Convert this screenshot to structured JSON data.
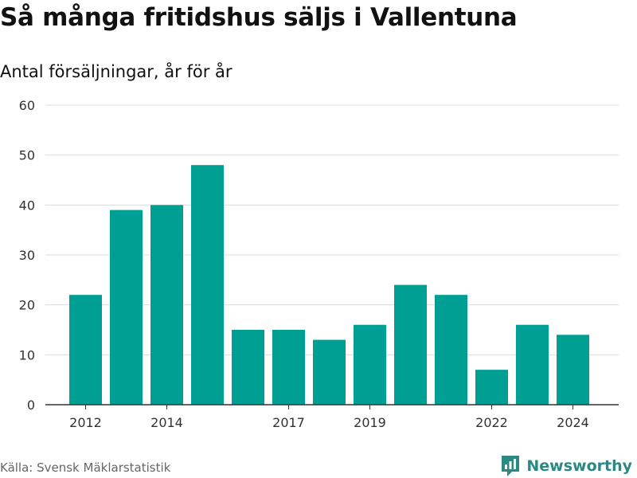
{
  "title": "Så många fritidshus säljs i Vallentuna",
  "subtitle": "Antal försäljningar, år för år",
  "source": "Källa: Svensk Mäklarstatistik",
  "brand": {
    "name": "Newsworthy",
    "icon": "newsworthy-logo-icon",
    "color": "#2a8a83"
  },
  "colors": {
    "bar": "#009f94",
    "grid": "#dddddd",
    "axis": "#333333"
  },
  "chart_data": {
    "type": "bar",
    "x": [
      2012,
      2013,
      2014,
      2015,
      2016,
      2017,
      2018,
      2019,
      2020,
      2021,
      2022,
      2023,
      2024
    ],
    "values": [
      22,
      39,
      40,
      48,
      15,
      15,
      13,
      16,
      24,
      22,
      7,
      16,
      14
    ],
    "xticks": [
      "2012",
      "2014",
      "2017",
      "2019",
      "2022",
      "2024"
    ],
    "yticks": [
      0,
      10,
      20,
      30,
      40,
      50,
      60
    ],
    "ylim": [
      0,
      60
    ],
    "grid": true,
    "legend": "none"
  }
}
